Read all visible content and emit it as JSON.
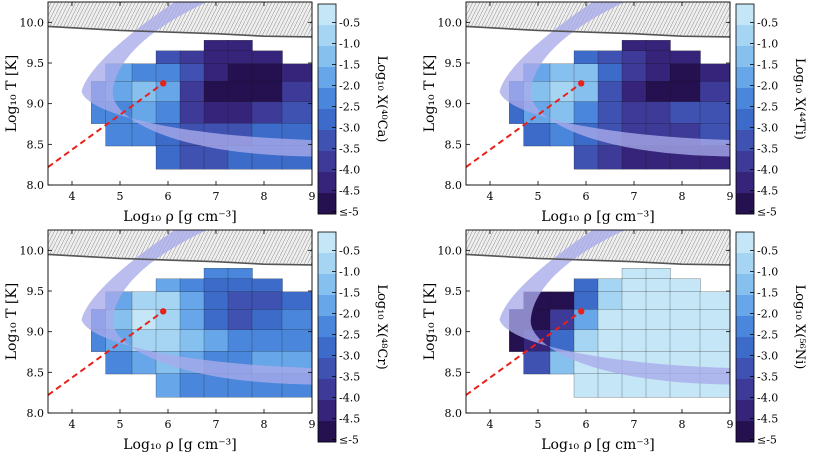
{
  "chart_data": [
    {
      "type": "heatmap",
      "panel": "top-left",
      "species_label": "Log₁₀ X(⁴⁰Ca)",
      "species_mass": "40",
      "species_symbol": "Ca",
      "xlabel": "Log₁₀ ρ [g cm⁻³]",
      "ylabel": "Log₁₀ T [K]",
      "xlim": [
        3.5,
        9.0
      ],
      "ylim": [
        8.0,
        10.25
      ],
      "xticks": [
        "4",
        "5",
        "6",
        "7",
        "8",
        "9"
      ],
      "yticks": [
        "8.0",
        "8.5",
        "9.0",
        "9.5",
        "10.0"
      ],
      "colorbar_ticks": [
        "-0.5",
        "-1.0",
        "-1.5",
        "-2.0",
        "-2.5",
        "-3.0",
        "-3.5",
        "-4.0",
        "-4.5",
        "≤-5"
      ],
      "point": [
        5.9,
        9.25
      ],
      "dashed_line": [
        [
          3.5,
          8.22
        ],
        [
          5.9,
          9.25
        ]
      ],
      "nse_boundary": [
        [
          3.5,
          9.95
        ],
        [
          5.0,
          9.9
        ],
        [
          6.0,
          9.88
        ],
        [
          7.0,
          9.86
        ],
        [
          8.0,
          9.83
        ],
        [
          9.0,
          9.82
        ]
      ],
      "level_grid": [
        [
          null,
          null,
          null,
          null,
          null,
          -4.5,
          -4.5,
          null,
          null
        ],
        [
          null,
          null,
          null,
          -3.5,
          -4.0,
          -4.5,
          -4.5,
          -4.5,
          null
        ],
        [
          null,
          -2.0,
          -2.5,
          -2.5,
          -3.5,
          -4.5,
          -5.0,
          -5.0,
          -4.5
        ],
        [
          -2.5,
          -2.0,
          -1.5,
          -2.0,
          -4.0,
          -5.0,
          -5.0,
          -5.0,
          -4.0
        ],
        [
          -2.5,
          -2.5,
          -2.0,
          -2.5,
          -4.0,
          -4.5,
          -4.5,
          -4.0,
          -3.5
        ],
        [
          null,
          -2.5,
          -2.5,
          -3.0,
          -3.5,
          -3.5,
          -3.5,
          -3.0,
          -3.0
        ],
        [
          null,
          null,
          null,
          -3.0,
          -3.5,
          -3.5,
          -3.0,
          -3.0,
          -3.0
        ]
      ]
    },
    {
      "type": "heatmap",
      "panel": "top-right",
      "species_label": "Log₁₀ X(⁴⁴Ti)",
      "species_mass": "44",
      "species_symbol": "Ti",
      "xlabel": "Log₁₀ ρ [g cm⁻³]",
      "ylabel": "Log₁₀ T [K]",
      "xlim": [
        3.5,
        9.0
      ],
      "ylim": [
        8.0,
        10.25
      ],
      "xticks": [
        "4",
        "5",
        "6",
        "7",
        "8",
        "9"
      ],
      "yticks": [
        "8.0",
        "8.5",
        "9.0",
        "9.5",
        "10.0"
      ],
      "colorbar_ticks": [
        "-0.5",
        "-1.0",
        "-1.5",
        "-2.0",
        "-2.5",
        "-3.0",
        "-3.5",
        "-4.0",
        "-4.5",
        "≤-5"
      ],
      "point": [
        5.9,
        9.25
      ],
      "dashed_line": [
        [
          3.5,
          8.22
        ],
        [
          5.9,
          9.25
        ]
      ],
      "nse_boundary": [
        [
          3.5,
          9.95
        ],
        [
          5.0,
          9.9
        ],
        [
          6.0,
          9.88
        ],
        [
          7.0,
          9.86
        ],
        [
          8.0,
          9.83
        ],
        [
          9.0,
          9.82
        ]
      ],
      "level_grid": [
        [
          null,
          null,
          null,
          null,
          null,
          -4.5,
          -4.5,
          null,
          null
        ],
        [
          null,
          null,
          null,
          -3.0,
          -3.5,
          -4.0,
          -4.5,
          -4.5,
          null
        ],
        [
          null,
          -2.0,
          -1.5,
          -1.5,
          -3.0,
          -4.0,
          -4.5,
          -5.0,
          -4.5
        ],
        [
          -2.5,
          -1.5,
          -1.0,
          -1.5,
          -3.5,
          -4.5,
          -5.0,
          -5.0,
          -4.0
        ],
        [
          -3.0,
          -2.0,
          -1.5,
          -2.5,
          -3.5,
          -4.0,
          -4.0,
          -3.5,
          -3.5
        ],
        [
          null,
          -3.0,
          -2.5,
          -3.0,
          -3.5,
          -4.0,
          -4.0,
          -4.0,
          -3.5
        ],
        [
          null,
          null,
          null,
          -3.5,
          -4.0,
          -4.5,
          -4.5,
          -4.5,
          -4.5
        ]
      ]
    },
    {
      "type": "heatmap",
      "panel": "bottom-left",
      "species_label": "Log₁₀ X(⁴⁸Cr)",
      "species_mass": "48",
      "species_symbol": "Cr",
      "xlabel": "Log₁₀ ρ [g cm⁻³]",
      "ylabel": "Log₁₀ T [K]",
      "xlim": [
        3.5,
        9.0
      ],
      "ylim": [
        8.0,
        10.25
      ],
      "xticks": [
        "4",
        "5",
        "6",
        "7",
        "8",
        "9"
      ],
      "yticks": [
        "8.0",
        "8.5",
        "9.0",
        "9.5",
        "10.0"
      ],
      "colorbar_ticks": [
        "-0.5",
        "-1.0",
        "-1.5",
        "-2.0",
        "-2.5",
        "-3.0",
        "-3.5",
        "-4.0",
        "-4.5",
        "≤-5"
      ],
      "point": [
        5.9,
        9.25
      ],
      "dashed_line": [
        [
          3.5,
          8.22
        ],
        [
          5.9,
          9.25
        ]
      ],
      "nse_boundary": [
        [
          3.5,
          9.95
        ],
        [
          5.0,
          9.9
        ],
        [
          6.0,
          9.88
        ],
        [
          7.0,
          9.86
        ],
        [
          8.0,
          9.83
        ],
        [
          9.0,
          9.82
        ]
      ],
      "level_grid": [
        [
          null,
          null,
          null,
          null,
          null,
          -2.5,
          -2.5,
          null,
          null
        ],
        [
          null,
          null,
          null,
          -2.0,
          -2.5,
          -3.0,
          -3.0,
          -3.0,
          null
        ],
        [
          null,
          -2.0,
          -1.0,
          -1.0,
          -2.0,
          -3.0,
          -3.5,
          -3.5,
          -3.0
        ],
        [
          -2.5,
          -1.5,
          -0.5,
          -1.0,
          -2.0,
          -3.0,
          -3.5,
          -3.0,
          -2.5
        ],
        [
          -2.5,
          -2.0,
          -1.0,
          -1.0,
          -1.5,
          -2.0,
          -2.5,
          -2.5,
          -2.5
        ],
        [
          null,
          -2.5,
          -2.0,
          -1.5,
          -2.0,
          -2.5,
          -2.5,
          -2.0,
          -2.0
        ],
        [
          null,
          null,
          null,
          -2.0,
          -2.5,
          -2.5,
          -2.5,
          -2.5,
          -2.5
        ]
      ]
    },
    {
      "type": "heatmap",
      "panel": "bottom-right",
      "species_label": "Log₁₀ X(⁵⁶Ni)",
      "species_mass": "56",
      "species_symbol": "Ni",
      "xlabel": "Log₁₀ ρ [g cm⁻³]",
      "ylabel": "Log₁₀ T [K]",
      "xlim": [
        3.5,
        9.0
      ],
      "ylim": [
        8.0,
        10.25
      ],
      "xticks": [
        "4",
        "5",
        "6",
        "7",
        "8",
        "9"
      ],
      "yticks": [
        "8.0",
        "8.5",
        "9.0",
        "9.5",
        "10.0"
      ],
      "colorbar_ticks": [
        "-0.5",
        "-1.0",
        "-1.5",
        "-2.0",
        "-2.5",
        "-3.0",
        "-3.5",
        "-4.0",
        "-4.5",
        "≤-5"
      ],
      "point": [
        5.9,
        9.25
      ],
      "dashed_line": [
        [
          3.5,
          8.22
        ],
        [
          5.9,
          9.25
        ]
      ],
      "nse_boundary": [
        [
          3.5,
          9.95
        ],
        [
          5.0,
          9.9
        ],
        [
          6.0,
          9.88
        ],
        [
          7.0,
          9.86
        ],
        [
          8.0,
          9.83
        ],
        [
          9.0,
          9.82
        ]
      ],
      "level_grid": [
        [
          null,
          null,
          null,
          null,
          null,
          -0.5,
          -0.5,
          null,
          null
        ],
        [
          null,
          null,
          null,
          -3.0,
          -1.0,
          -0.5,
          -0.5,
          -0.5,
          null
        ],
        [
          null,
          -5.0,
          -5.0,
          -3.0,
          -1.0,
          -0.5,
          -0.5,
          -0.5,
          -0.5
        ],
        [
          -5.0,
          -5.0,
          -4.0,
          -2.0,
          -0.5,
          -0.5,
          -0.5,
          -0.5,
          -0.5
        ],
        [
          -5.0,
          -4.5,
          -3.0,
          -1.0,
          -0.5,
          -0.5,
          -0.5,
          -0.5,
          -0.5
        ],
        [
          null,
          -3.5,
          -1.5,
          -0.5,
          -0.5,
          -0.5,
          -0.5,
          -0.5,
          -0.5
        ],
        [
          null,
          null,
          null,
          -0.5,
          -0.5,
          -0.5,
          -0.5,
          -0.5,
          -0.5
        ]
      ]
    }
  ],
  "grid_x": [
    4.4,
    5.0,
    5.5,
    6.0,
    6.5,
    7.0,
    7.5,
    8.0,
    8.75
  ],
  "grid_y": [
    9.72,
    9.58,
    9.4,
    9.15,
    8.9,
    8.62,
    8.35
  ],
  "colors": {
    "levels": [
      "#c5e6f6",
      "#a6d5f3",
      "#86c0ef",
      "#67a6e8",
      "#4a87dc",
      "#3d6bc9",
      "#3f52b2",
      "#3e3a97",
      "#35247a",
      "#25114f"
    ],
    "band": "#a9aaea",
    "hatch_fill": "#ececec",
    "nse_line": "#555555",
    "dashed": "#e8211b"
  }
}
